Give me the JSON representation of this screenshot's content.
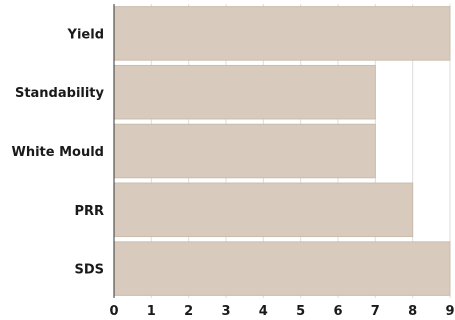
{
  "chart_data": {
    "type": "bar",
    "orientation": "horizontal",
    "categories": [
      "Yield",
      "Standability",
      "White Mould",
      "PRR",
      "SDS"
    ],
    "values": [
      9,
      7,
      7,
      8,
      9
    ],
    "xlim": [
      0,
      9
    ],
    "xticks": [
      "0",
      "1",
      "2",
      "3",
      "4",
      "5",
      "6",
      "7",
      "8",
      "9"
    ],
    "grid": true,
    "legend": "none",
    "title": "",
    "xlabel": "",
    "ylabel": "",
    "colors": {
      "bar": "#d8cbbd",
      "bar_edge": "#c9bcad",
      "grid": "#dddddd"
    }
  }
}
